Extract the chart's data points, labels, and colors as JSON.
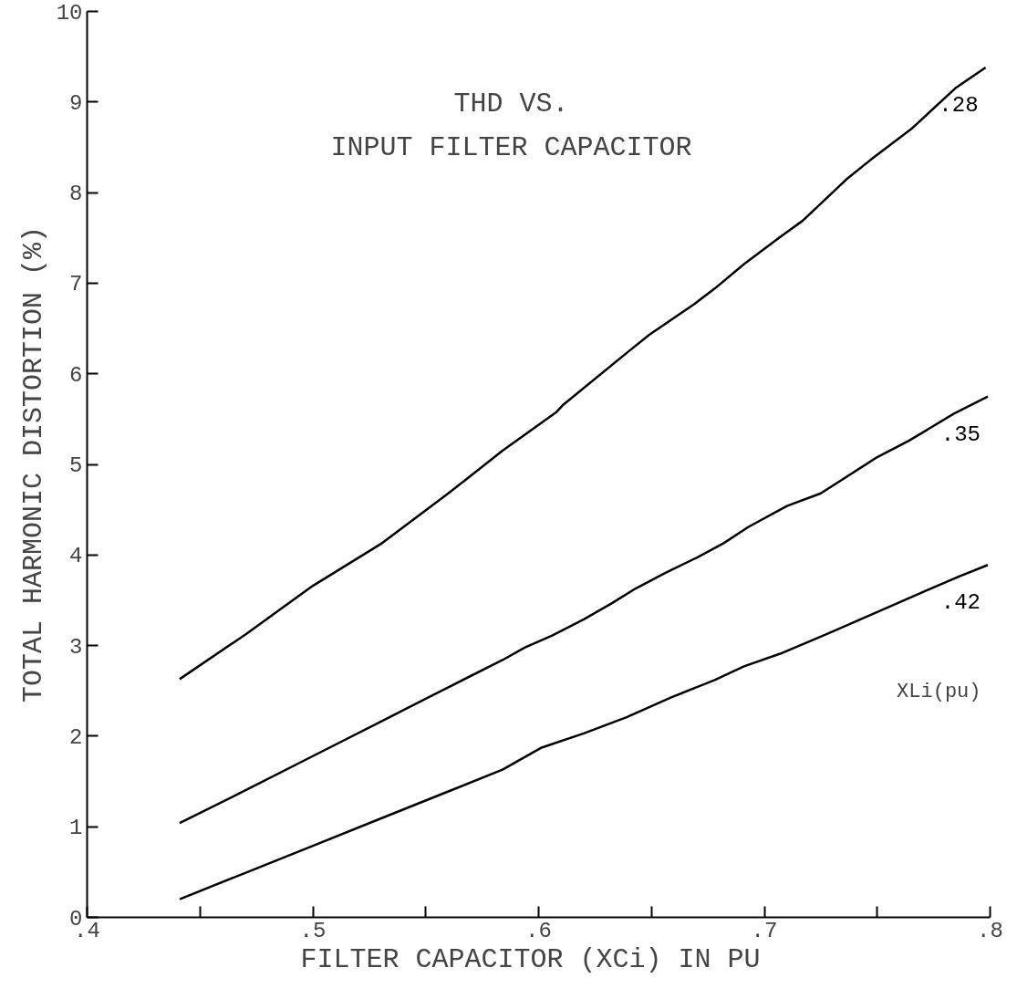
{
  "chart_data": {
    "type": "line",
    "title": "THD VS.\nINPUT FILTER CAPACITOR",
    "xlabel": "FILTER  CAPACITOR (XCi) IN PU",
    "ylabel": "TOTAL HARMONIC DISTORTION (%)",
    "annotations": [
      "XLi(pu)"
    ],
    "xlim": [
      0.4,
      0.8
    ],
    "ylim": [
      0,
      10
    ],
    "xticks": [
      {
        "value": 0.4,
        "label": ".4"
      },
      {
        "value": 0.45,
        "label": null
      },
      {
        "value": 0.5,
        "label": ".5"
      },
      {
        "value": 0.55,
        "label": null
      },
      {
        "value": 0.6,
        "label": ".6"
      },
      {
        "value": 0.65,
        "label": null
      },
      {
        "value": 0.7,
        "label": ".7"
      },
      {
        "value": 0.75,
        "label": null
      },
      {
        "value": 0.8,
        "label": ".8"
      }
    ],
    "yticks": [
      0,
      1,
      2,
      3,
      4,
      5,
      6,
      7,
      8,
      9,
      10
    ],
    "grid": false,
    "marker": "none",
    "line_style": "solid",
    "series": [
      {
        "name": ".28",
        "color": "#000000",
        "x": [
          0.441,
          0.47,
          0.5,
          0.53,
          0.56,
          0.584,
          0.608,
          0.611,
          0.64,
          0.649,
          0.669,
          0.678,
          0.691,
          0.707,
          0.717,
          0.737,
          0.747,
          0.765,
          0.785,
          0.798
        ],
        "values": [
          2.63,
          3.12,
          3.66,
          4.12,
          4.68,
          5.15,
          5.58,
          5.66,
          6.25,
          6.43,
          6.77,
          6.94,
          7.21,
          7.51,
          7.69,
          8.16,
          8.36,
          8.7,
          9.16,
          9.38
        ]
      },
      {
        "name": ".35",
        "color": "#000000",
        "x": [
          0.441,
          0.47,
          0.5,
          0.53,
          0.56,
          0.584,
          0.594,
          0.606,
          0.62,
          0.632,
          0.643,
          0.656,
          0.67,
          0.682,
          0.693,
          0.71,
          0.725,
          0.75,
          0.764,
          0.784,
          0.799
        ],
        "values": [
          1.04,
          1.4,
          1.78,
          2.16,
          2.54,
          2.84,
          2.98,
          3.11,
          3.29,
          3.46,
          3.63,
          3.8,
          3.97,
          4.13,
          4.31,
          4.54,
          4.68,
          5.08,
          5.26,
          5.56,
          5.75
        ]
      },
      {
        "name": ".42",
        "color": "#000000",
        "x": [
          0.441,
          0.47,
          0.5,
          0.53,
          0.56,
          0.584,
          0.601,
          0.62,
          0.639,
          0.659,
          0.678,
          0.691,
          0.707,
          0.728,
          0.75,
          0.771,
          0.786,
          0.799
        ],
        "values": [
          0.2,
          0.49,
          0.79,
          1.09,
          1.39,
          1.63,
          1.87,
          2.03,
          2.21,
          2.43,
          2.62,
          2.77,
          2.91,
          3.13,
          3.37,
          3.6,
          3.76,
          3.89
        ]
      }
    ]
  }
}
